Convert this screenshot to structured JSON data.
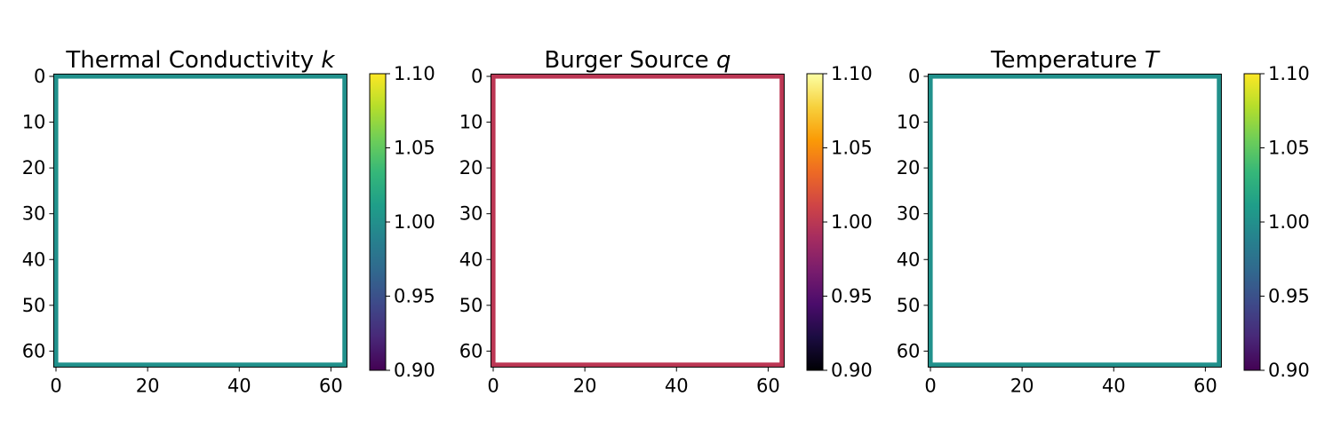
{
  "chart_data": [
    {
      "type": "heatmap",
      "title": "Thermal Conductivity ",
      "title_symbol": "k",
      "colormap": "viridis",
      "grid_size": 64,
      "xticks": [
        0,
        20,
        40,
        60
      ],
      "yticks": [
        0,
        10,
        20,
        30,
        40,
        50,
        60
      ],
      "color_range": [
        0.9,
        1.1
      ],
      "colorbar_ticks": [
        "0.90",
        "0.95",
        "1.00",
        "1.05",
        "1.10"
      ],
      "boundary_value": 1.0,
      "interior_value": null,
      "boundary_color": "#21918c",
      "interior_color": "#ffffff"
    },
    {
      "type": "heatmap",
      "title": "Burger Source ",
      "title_symbol": "q",
      "colormap": "inferno",
      "grid_size": 64,
      "xticks": [
        0,
        20,
        40,
        60
      ],
      "yticks": [
        0,
        10,
        20,
        30,
        40,
        50,
        60
      ],
      "color_range": [
        0.9,
        1.1
      ],
      "colorbar_ticks": [
        "0.90",
        "0.95",
        "1.00",
        "1.05",
        "1.10"
      ],
      "boundary_value": 1.0,
      "interior_value": null,
      "boundary_color": "#bc3754",
      "interior_color": "#ffffff"
    },
    {
      "type": "heatmap",
      "title": "Temperature ",
      "title_symbol": "T",
      "colormap": "viridis",
      "grid_size": 64,
      "xticks": [
        0,
        20,
        40,
        60
      ],
      "yticks": [
        0,
        10,
        20,
        30,
        40,
        50,
        60
      ],
      "color_range": [
        0.9,
        1.1
      ],
      "colorbar_ticks": [
        "0.90",
        "0.95",
        "1.00",
        "1.05",
        "1.10"
      ],
      "boundary_value": 1.0,
      "interior_value": null,
      "boundary_color": "#21918c",
      "interior_color": "#ffffff"
    }
  ]
}
